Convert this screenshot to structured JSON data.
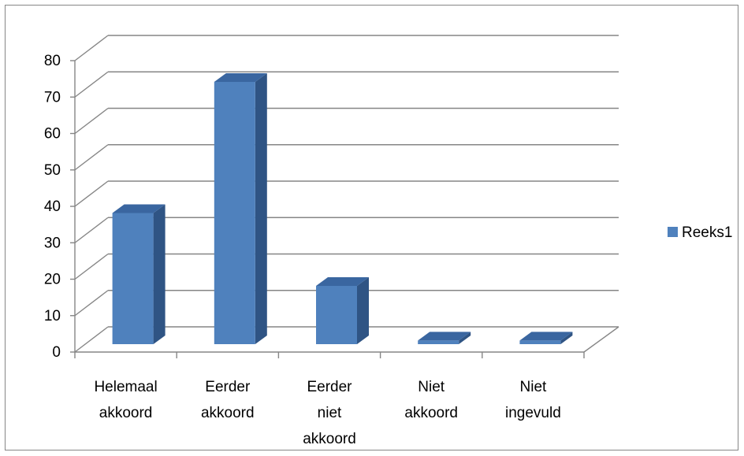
{
  "chart_data": {
    "type": "bar",
    "style": "3d-clustered-column",
    "categories": [
      [
        "Helemaal",
        "akkoord"
      ],
      [
        "Eerder",
        "akkoord"
      ],
      [
        "Eerder",
        "niet",
        "akkoord"
      ],
      [
        "Niet",
        "akkoord"
      ],
      [
        "Niet",
        "ingevuld"
      ]
    ],
    "series": [
      {
        "name": "Reeks1",
        "values": [
          36,
          72,
          16,
          1,
          1
        ]
      }
    ],
    "ylim": [
      0,
      80
    ],
    "yticks": [
      "0",
      "10",
      "20",
      "30",
      "40",
      "50",
      "60",
      "70",
      "80"
    ],
    "grid": true,
    "legend": "right",
    "colors": {
      "bar_front": "#4F81BD",
      "bar_top": "#3A66A0",
      "bar_side": "#2F5484",
      "grid": "#868686"
    }
  }
}
